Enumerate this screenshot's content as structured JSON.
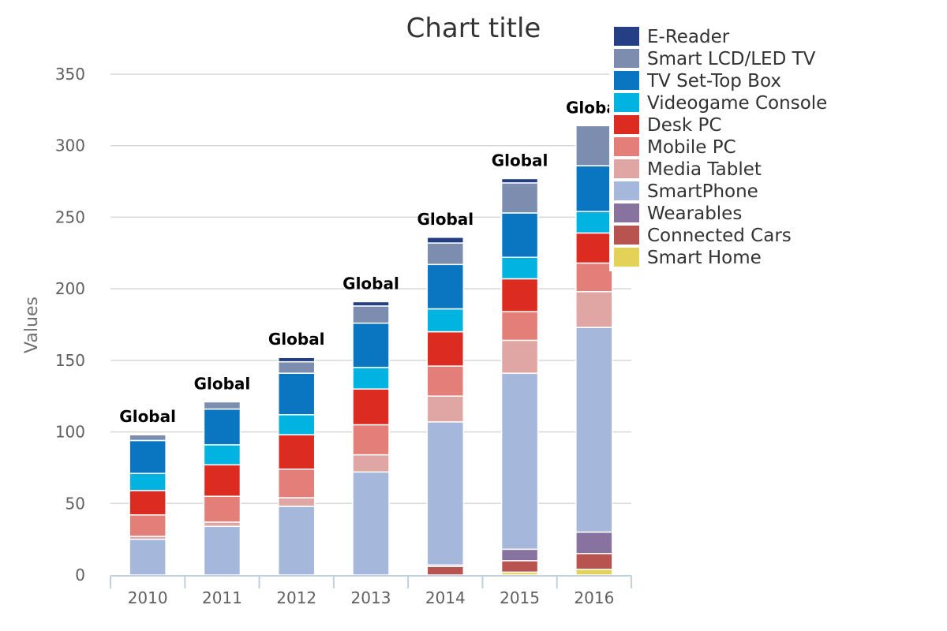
{
  "chart_data": {
    "type": "bar",
    "stacked": true,
    "title": "Chart title",
    "xlabel": "",
    "ylabel": "Values",
    "ylim": [
      0,
      350
    ],
    "yticks": [
      0,
      50,
      100,
      150,
      200,
      250,
      300,
      350
    ],
    "grid": true,
    "legend_position": "top-right",
    "categories": [
      "2010",
      "2011",
      "2012",
      "2013",
      "2014",
      "2015",
      "2016"
    ],
    "stack_labels": [
      "Global",
      "Global",
      "Global",
      "Global",
      "Global",
      "Global",
      "Global"
    ],
    "series": [
      {
        "name": "Smart Home",
        "color": "#e3d257",
        "values": [
          0,
          0,
          0,
          0,
          0,
          2,
          4
        ]
      },
      {
        "name": "Connected Cars",
        "color": "#b85450",
        "values": [
          0,
          0,
          0,
          0,
          6,
          8,
          11
        ]
      },
      {
        "name": "Wearables",
        "color": "#8872a0",
        "values": [
          0,
          0,
          0,
          0,
          1,
          8,
          15
        ]
      },
      {
        "name": "SmartPhone",
        "color": "#a5b8db",
        "values": [
          25,
          34,
          48,
          72,
          100,
          123,
          143
        ]
      },
      {
        "name": "Media Tablet",
        "color": "#dfa6a4",
        "values": [
          2,
          3,
          6,
          12,
          18,
          23,
          25
        ]
      },
      {
        "name": "Mobile PC",
        "color": "#e47e78",
        "values": [
          15,
          18,
          20,
          21,
          21,
          20,
          20
        ]
      },
      {
        "name": "Desk PC",
        "color": "#dc2b20",
        "values": [
          17,
          22,
          24,
          25,
          24,
          23,
          21
        ]
      },
      {
        "name": "Videogame Console",
        "color": "#00b3e0",
        "values": [
          12,
          14,
          14,
          15,
          16,
          15,
          15
        ]
      },
      {
        "name": "TV Set-Top Box",
        "color": "#0a76c2",
        "values": [
          23,
          25,
          29,
          31,
          31,
          31,
          32
        ]
      },
      {
        "name": "Smart LCD/LED TV",
        "color": "#7d8db0",
        "values": [
          4,
          5,
          8,
          12,
          15,
          21,
          28
        ]
      },
      {
        "name": "E-Reader",
        "color": "#253f85",
        "values": [
          0,
          0,
          3,
          3,
          4,
          3,
          0
        ]
      }
    ],
    "legend_order": [
      "E-Reader",
      "Smart LCD/LED TV",
      "TV Set-Top Box",
      "Videogame Console",
      "Desk PC",
      "Mobile PC",
      "Media Tablet",
      "SmartPhone",
      "Wearables",
      "Connected Cars",
      "Smart Home"
    ]
  }
}
